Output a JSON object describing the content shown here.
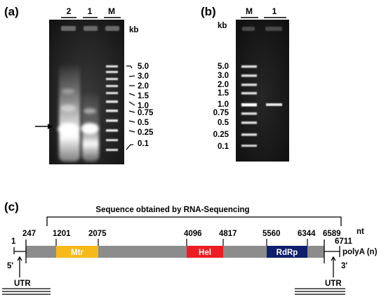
{
  "panel_a": {
    "label": "(a)",
    "lanes": [
      "2",
      "1",
      "M"
    ],
    "unit": "kb",
    "markers": [
      "5.0",
      "3.0",
      "2.0",
      "1.5",
      "1.0",
      "0.75",
      "0.5",
      "0.25",
      "0.1"
    ]
  },
  "panel_b": {
    "label": "(b)",
    "lanes": [
      "M",
      "1"
    ],
    "unit": "kb",
    "markers": [
      "5.0",
      "3.0",
      "2.0",
      "1.5",
      "1.0",
      "0.75",
      "0.5",
      "0.25",
      "0.1"
    ]
  },
  "panel_c": {
    "label": "(c)",
    "bracket_title": "Sequence obtained by RNA-Sequencing",
    "unit": "nt",
    "positions": [
      "1",
      "247",
      "1201",
      "2075",
      "4096",
      "4817",
      "5560",
      "6344",
      "6589",
      "6711"
    ],
    "domains": [
      {
        "name": "Mtr",
        "color": "#f7b81a"
      },
      {
        "name": "Hel",
        "color": "#ee1c24"
      },
      {
        "name": "RdRp",
        "color": "#0f1f6b"
      }
    ],
    "genome_color": "#8c8c8c",
    "five_prime": "5'",
    "three_prime": "3'",
    "utr_left": "UTR",
    "utr_right": "UTR",
    "polya": "polyA (n)"
  }
}
